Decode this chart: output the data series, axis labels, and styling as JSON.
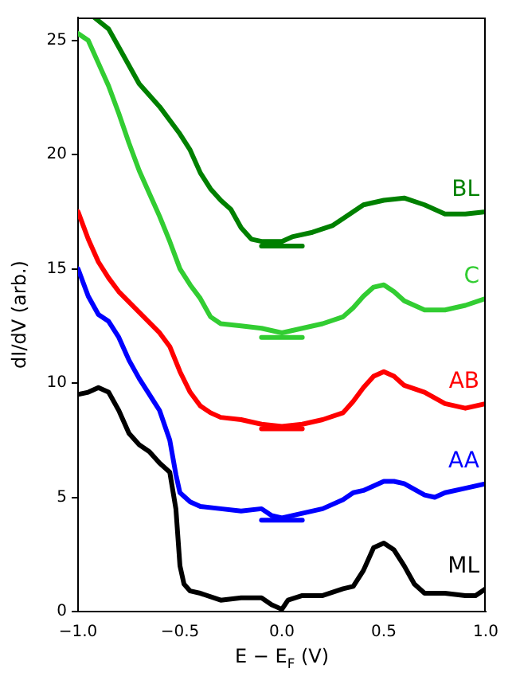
{
  "chart_data": {
    "type": "line",
    "xlabel": "E − E$_{F}$ (V)",
    "ylabel": "dI/dV (arb.)",
    "xlim": [
      -1,
      1
    ],
    "ylim": [
      0,
      26
    ],
    "xticks": [
      {
        "value": -1,
        "label": "−1.0"
      },
      {
        "value": -0.5,
        "label": "−0.5"
      },
      {
        "value": 0,
        "label": "0.0"
      },
      {
        "value": 0.5,
        "label": "0.5"
      },
      {
        "value": 1,
        "label": "1.0"
      }
    ],
    "yticks": [
      0,
      5,
      10,
      15,
      20,
      25
    ],
    "grid": false,
    "legend": false,
    "marker": "none",
    "line_style": "solid",
    "series": [
      {
        "name": "ML",
        "color": "#000000",
        "x": [
          -1,
          -0.95,
          -0.9,
          -0.85,
          -0.8,
          -0.75,
          -0.7,
          -0.65,
          -0.6,
          -0.55,
          -0.52,
          -0.5,
          -0.48,
          -0.45,
          -0.4,
          -0.3,
          -0.2,
          -0.1,
          -0.05,
          0,
          0.03,
          0.1,
          0.2,
          0.3,
          0.35,
          0.4,
          0.45,
          0.5,
          0.55,
          0.6,
          0.65,
          0.7,
          0.8,
          0.9,
          0.95,
          1
        ],
        "values": [
          9.5,
          9.6,
          9.8,
          9.6,
          8.8,
          7.8,
          7.3,
          7.0,
          6.5,
          6.1,
          4.5,
          2.0,
          1.2,
          0.9,
          0.8,
          0.5,
          0.6,
          0.6,
          0.3,
          0.1,
          0.5,
          0.7,
          0.7,
          1.0,
          1.1,
          1.8,
          2.8,
          3.0,
          2.7,
          2.0,
          1.2,
          0.8,
          0.8,
          0.7,
          0.7,
          1.0
        ]
      },
      {
        "name": "AA",
        "color": "#0000ff",
        "x": [
          -1,
          -0.95,
          -0.9,
          -0.85,
          -0.8,
          -0.75,
          -0.7,
          -0.65,
          -0.6,
          -0.55,
          -0.52,
          -0.5,
          -0.45,
          -0.4,
          -0.3,
          -0.2,
          -0.1,
          -0.05,
          0,
          0.1,
          0.2,
          0.3,
          0.35,
          0.4,
          0.5,
          0.55,
          0.6,
          0.7,
          0.75,
          0.8,
          0.9,
          1
        ],
        "values": [
          15.0,
          13.8,
          13.0,
          12.7,
          12.0,
          11.0,
          10.2,
          9.5,
          8.8,
          7.5,
          6.0,
          5.2,
          4.8,
          4.6,
          4.5,
          4.4,
          4.5,
          4.2,
          4.1,
          4.3,
          4.5,
          4.9,
          5.2,
          5.3,
          5.7,
          5.7,
          5.6,
          5.1,
          5.0,
          5.2,
          5.4,
          5.6
        ]
      },
      {
        "name": "AB",
        "color": "#ff0000",
        "x": [
          -1,
          -0.95,
          -0.9,
          -0.85,
          -0.8,
          -0.7,
          -0.6,
          -0.55,
          -0.5,
          -0.45,
          -0.4,
          -0.35,
          -0.3,
          -0.2,
          -0.1,
          0,
          0.1,
          0.2,
          0.3,
          0.35,
          0.4,
          0.45,
          0.5,
          0.55,
          0.6,
          0.7,
          0.8,
          0.9,
          1
        ],
        "values": [
          17.5,
          16.3,
          15.3,
          14.6,
          14.0,
          13.1,
          12.2,
          11.6,
          10.5,
          9.6,
          9.0,
          8.7,
          8.5,
          8.4,
          8.2,
          8.1,
          8.2,
          8.4,
          8.7,
          9.2,
          9.8,
          10.3,
          10.5,
          10.3,
          9.9,
          9.6,
          9.1,
          8.9,
          9.1
        ]
      },
      {
        "name": "C",
        "color": "#32cd32",
        "x": [
          -1,
          -0.95,
          -0.9,
          -0.85,
          -0.8,
          -0.75,
          -0.7,
          -0.65,
          -0.6,
          -0.55,
          -0.5,
          -0.45,
          -0.4,
          -0.35,
          -0.3,
          -0.2,
          -0.1,
          0,
          0.1,
          0.2,
          0.3,
          0.35,
          0.4,
          0.45,
          0.5,
          0.55,
          0.6,
          0.7,
          0.8,
          0.9,
          1
        ],
        "values": [
          25.3,
          25.0,
          24.0,
          23.0,
          21.8,
          20.5,
          19.3,
          18.3,
          17.3,
          16.2,
          15.0,
          14.3,
          13.7,
          12.9,
          12.6,
          12.5,
          12.4,
          12.2,
          12.4,
          12.6,
          12.9,
          13.3,
          13.8,
          14.2,
          14.3,
          14.0,
          13.6,
          13.2,
          13.2,
          13.4,
          13.7
        ]
      },
      {
        "name": "BL",
        "color": "#008000",
        "x": [
          -0.92,
          -0.85,
          -0.8,
          -0.75,
          -0.7,
          -0.6,
          -0.5,
          -0.45,
          -0.4,
          -0.35,
          -0.3,
          -0.25,
          -0.2,
          -0.15,
          -0.1,
          0,
          0.05,
          0.15,
          0.25,
          0.3,
          0.4,
          0.5,
          0.6,
          0.7,
          0.8,
          0.9,
          1
        ],
        "values": [
          26.0,
          25.5,
          24.7,
          23.9,
          23.1,
          22.1,
          20.9,
          20.2,
          19.2,
          18.5,
          18.0,
          17.6,
          16.8,
          16.3,
          16.2,
          16.2,
          16.4,
          16.6,
          16.9,
          17.2,
          17.8,
          18.0,
          18.1,
          17.8,
          17.4,
          17.4,
          17.5
        ]
      },
      {
        "color": "#0000ff",
        "x": [
          -0.1,
          0.1
        ],
        "values": [
          4,
          4
        ]
      },
      {
        "color": "#ff0000",
        "x": [
          -0.1,
          0.1
        ],
        "values": [
          8,
          8
        ]
      },
      {
        "color": "#32cd32",
        "x": [
          -0.1,
          0.1
        ],
        "values": [
          12,
          12
        ]
      },
      {
        "color": "#008000",
        "x": [
          -0.1,
          0.1
        ],
        "values": [
          16,
          16
        ]
      }
    ]
  }
}
